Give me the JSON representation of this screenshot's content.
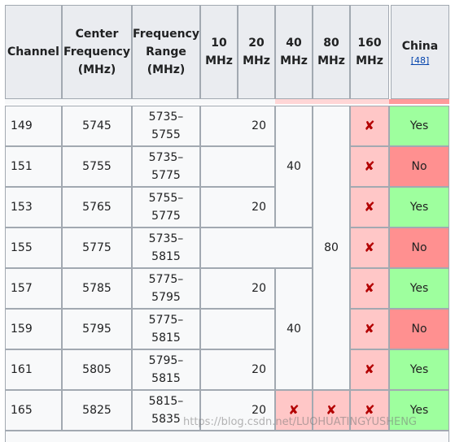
{
  "headers": {
    "channel": "Channel",
    "center_frequency": "Center Frequency (MHz)",
    "frequency_range": "Frequency Range (MHz)",
    "w10": "10 MHz",
    "w20": "20 MHz",
    "w40": "40 MHz",
    "w80": "80 MHz",
    "w160": "160 MHz",
    "china": "China",
    "china_ref": "[48]"
  },
  "rows": [
    {
      "channel": "149",
      "center": "5745",
      "range": "5735–\n5755",
      "w20": "20",
      "w160": "✘",
      "china": "Yes"
    },
    {
      "channel": "151",
      "center": "5755",
      "range": "5735–\n5775",
      "w160": "✘",
      "china": "No"
    },
    {
      "channel": "153",
      "center": "5765",
      "range": "5755–\n5775",
      "w20": "20",
      "w160": "✘",
      "china": "Yes"
    },
    {
      "channel": "155",
      "center": "5775",
      "range": "5735–\n5815",
      "w160": "✘",
      "china": "No"
    },
    {
      "channel": "157",
      "center": "5785",
      "range": "5775–\n5795",
      "w20": "20",
      "w160": "✘",
      "china": "Yes"
    },
    {
      "channel": "159",
      "center": "5795",
      "range": "5775–\n5815",
      "w160": "✘",
      "china": "No"
    },
    {
      "channel": "161",
      "center": "5805",
      "range": "5795–\n5815",
      "w20": "20",
      "w160": "✘",
      "china": "Yes"
    },
    {
      "channel": "165",
      "center": "5825",
      "range": "5815–\n5835",
      "w20": "20",
      "w40": "✘",
      "w80": "✘",
      "w160": "✘",
      "china": "Yes"
    }
  ],
  "spans": {
    "w40_a": "40",
    "w40_b": "40",
    "w80": "80"
  },
  "colors": {
    "header_bg": "#eaecf0",
    "cell_bg": "#f8f9fa",
    "unsupported_bg": "#ffc7c7",
    "yes_bg": "#9eff9e",
    "no_bg": "#ff9090",
    "cross": "#b30000"
  },
  "watermark": "https://blog.csdn.net/LUOHUATINGYUSHENG"
}
